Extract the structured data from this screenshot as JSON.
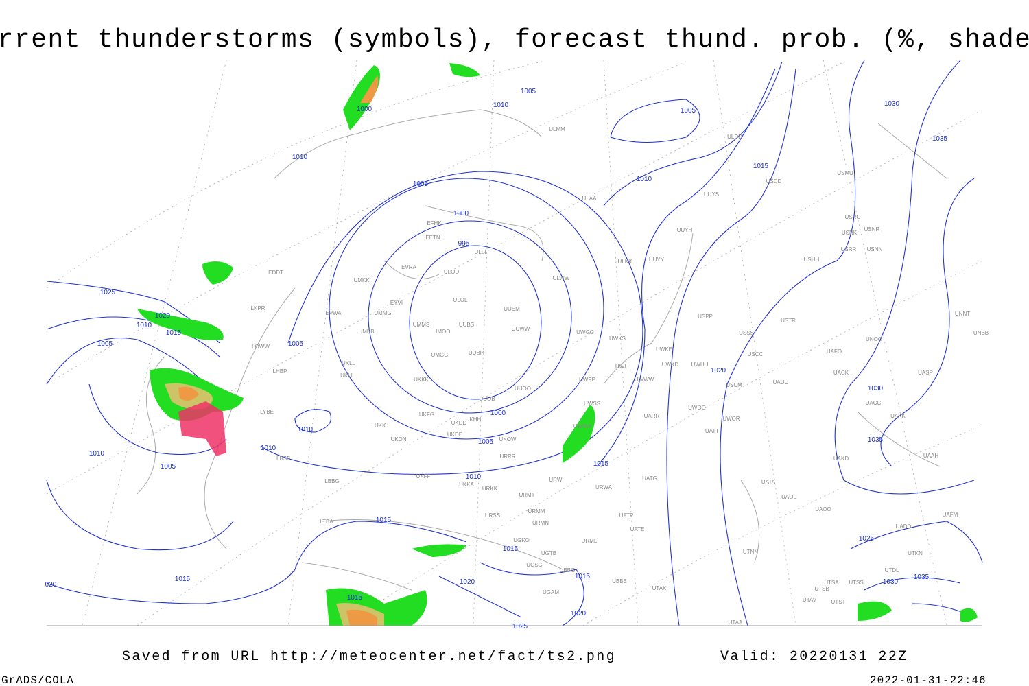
{
  "header": {
    "title": "Current thunderstorms (symbols), forecast thund. prob. (%, shaded)"
  },
  "footer": {
    "source": "Saved from URL http://meteocenter.net/fact/ts2.png",
    "valid": "Valid: 20220131 22Z",
    "credit": "GrADS/COLA",
    "timestamp": "2022-01-31-22:46"
  },
  "isobar_labels": [
    "1000",
    "1005",
    "1010",
    "1010",
    "1005",
    "1015",
    "1010",
    "1005",
    "1000",
    "995",
    "1025",
    "1020",
    "1010",
    "1015",
    "1005",
    "1005",
    "1020",
    "1030",
    "1010",
    "1000",
    "1005",
    "1035",
    "1010",
    "1010",
    "1005",
    "1015",
    "1010",
    "1015",
    "1015",
    "1025",
    "1015",
    "1020",
    "1015",
    "1020",
    "1015",
    "1025",
    "1030",
    "1035",
    "1030",
    "1035",
    "020"
  ],
  "stations": [
    "ULMM",
    "ULDD",
    "USDD",
    "USMU",
    "ULAA",
    "UUYS",
    "USRO",
    "USRK",
    "USNR",
    "USRR",
    "USNN",
    "UUYH",
    "EFHK",
    "EETN",
    "ULLI",
    "ULKK",
    "UUYY",
    "USHH",
    "EVRA",
    "ULOD",
    "UMKK",
    "ULWW",
    "EDDT",
    "EYVI",
    "ULOL",
    "UUEM",
    "LKPR",
    "UMMG",
    "EPWA",
    "UUWW",
    "UMMS",
    "UUBS",
    "UMOO",
    "USSS",
    "USTR",
    "USPP",
    "UNNT",
    "UNBB",
    "UWGG",
    "UWKS",
    "UNOO",
    "UMBB",
    "UWKE",
    "LOWW",
    "UMGG",
    "UUBP",
    "USCC",
    "UAFO",
    "LHBP",
    "UKLL",
    "UWKD",
    "UWUU",
    "UWLL",
    "UWWW",
    "UASP",
    "UACK",
    "UKLI",
    "UKKK",
    "UWPP",
    "USCM",
    "UAUU",
    "UUOO",
    "UACC",
    "LYBE",
    "UUOB",
    "UWSS",
    "UWOO",
    "UAKK",
    "UARR",
    "UWOR",
    "UKHH",
    "UKFG",
    "UKDD",
    "LUKK",
    "UWRW",
    "UATT",
    "UKDE",
    "UKON",
    "UKOW",
    "UAAH",
    "UAKD",
    "URRR",
    "LBSF",
    "UKFF",
    "URWI",
    "UATG",
    "UATA",
    "LBBG",
    "UKKA",
    "URKK",
    "URWA",
    "URMT",
    "UAOL",
    "UAOO",
    "URSS",
    "URMM",
    "UATP",
    "URMN",
    "UATE",
    "UADD",
    "UAFM",
    "UGKO",
    "URML",
    "UTNN",
    "UTKN",
    "UGTB",
    "UGSG",
    "UBBG",
    "UTDL",
    "UBBB",
    "UTAK",
    "UTSS",
    "UTSA",
    "UTSB",
    "UGAM",
    "UTAV",
    "UTST",
    "UTAA",
    "LTBA"
  ]
}
